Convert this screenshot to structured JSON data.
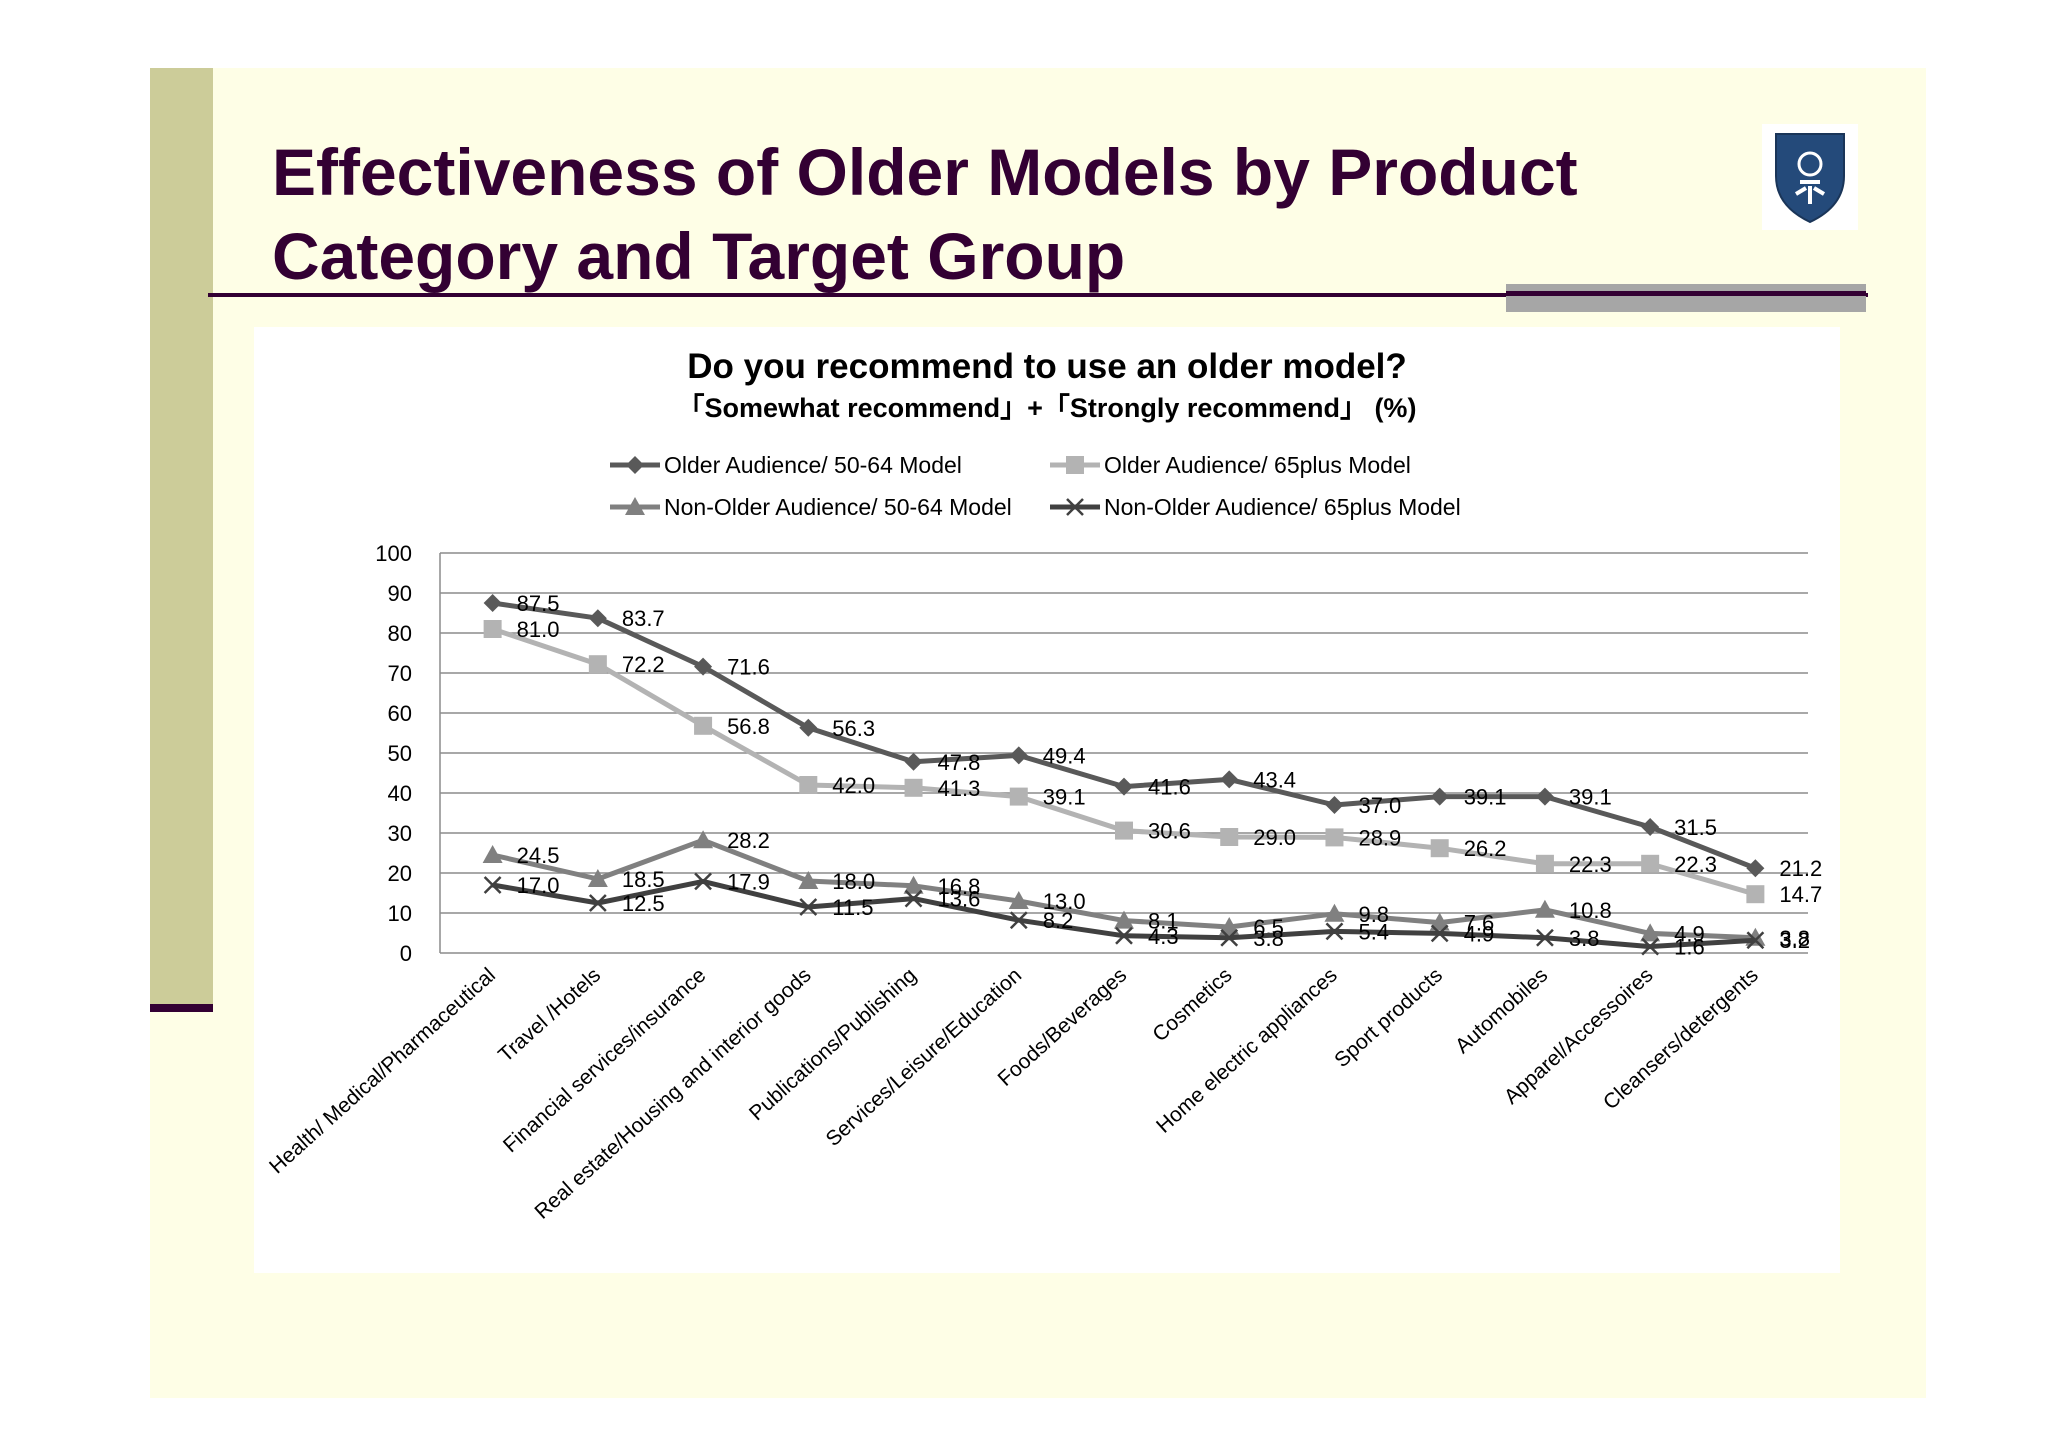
{
  "slide": {
    "title": "Effectiveness of Older Models by Product Category and Target Group"
  },
  "chart_data": {
    "type": "line",
    "title": "Do you recommend to use an older model?",
    "subtitle": "「Somewhat recommend」+「Strongly recommend」 (%)",
    "xlabel": "",
    "ylabel": "",
    "ylim": [
      0,
      100
    ],
    "yticks": [
      0,
      10,
      20,
      30,
      40,
      50,
      60,
      70,
      80,
      90,
      100
    ],
    "grid": true,
    "legend_position": "top",
    "categories": [
      "Health/ Medical/Pharmaceutical",
      "Travel /Hotels",
      "Financial services/insurance",
      "Real estate/Housing and interior goods",
      "Publications/Publishing",
      "Services/Leisure/Education",
      "Foods/Beverages",
      "Cosmetics",
      "Home electric appliances",
      "Sport products",
      "Automobiles",
      "Apparel/Accessoires",
      "Cleansers/detergents"
    ],
    "series": [
      {
        "name": "Older Audience/ 50-64 Model",
        "color": "#595959",
        "marker": "diamond",
        "values": [
          87.5,
          83.7,
          71.6,
          56.3,
          47.8,
          49.4,
          41.6,
          43.4,
          37.0,
          39.1,
          39.1,
          31.5,
          21.2
        ]
      },
      {
        "name": "Older Audience/ 65plus Model",
        "color": "#b3b3b3",
        "marker": "square",
        "values": [
          81.0,
          72.2,
          56.8,
          42.0,
          41.3,
          39.1,
          30.6,
          29.0,
          28.9,
          26.2,
          22.3,
          22.3,
          14.7
        ]
      },
      {
        "name": "Non-Older Audience/ 50-64 Model",
        "color": "#808080",
        "marker": "triangle",
        "values": [
          24.5,
          18.5,
          28.2,
          18.0,
          16.8,
          13.0,
          8.1,
          6.5,
          9.8,
          7.6,
          10.8,
          4.9,
          3.8
        ]
      },
      {
        "name": "Non-Older Audience/ 65plus Model",
        "color": "#404040",
        "marker": "x",
        "values": [
          17.0,
          12.5,
          17.9,
          11.5,
          13.6,
          8.2,
          4.3,
          3.8,
          5.4,
          4.9,
          3.8,
          1.6,
          3.2
        ]
      }
    ]
  },
  "colors": {
    "slide_background": "#fefee6",
    "title_color": "#330033",
    "left_bar": "#cccc99"
  },
  "icons": {
    "logo": "shield-crest-icon"
  }
}
